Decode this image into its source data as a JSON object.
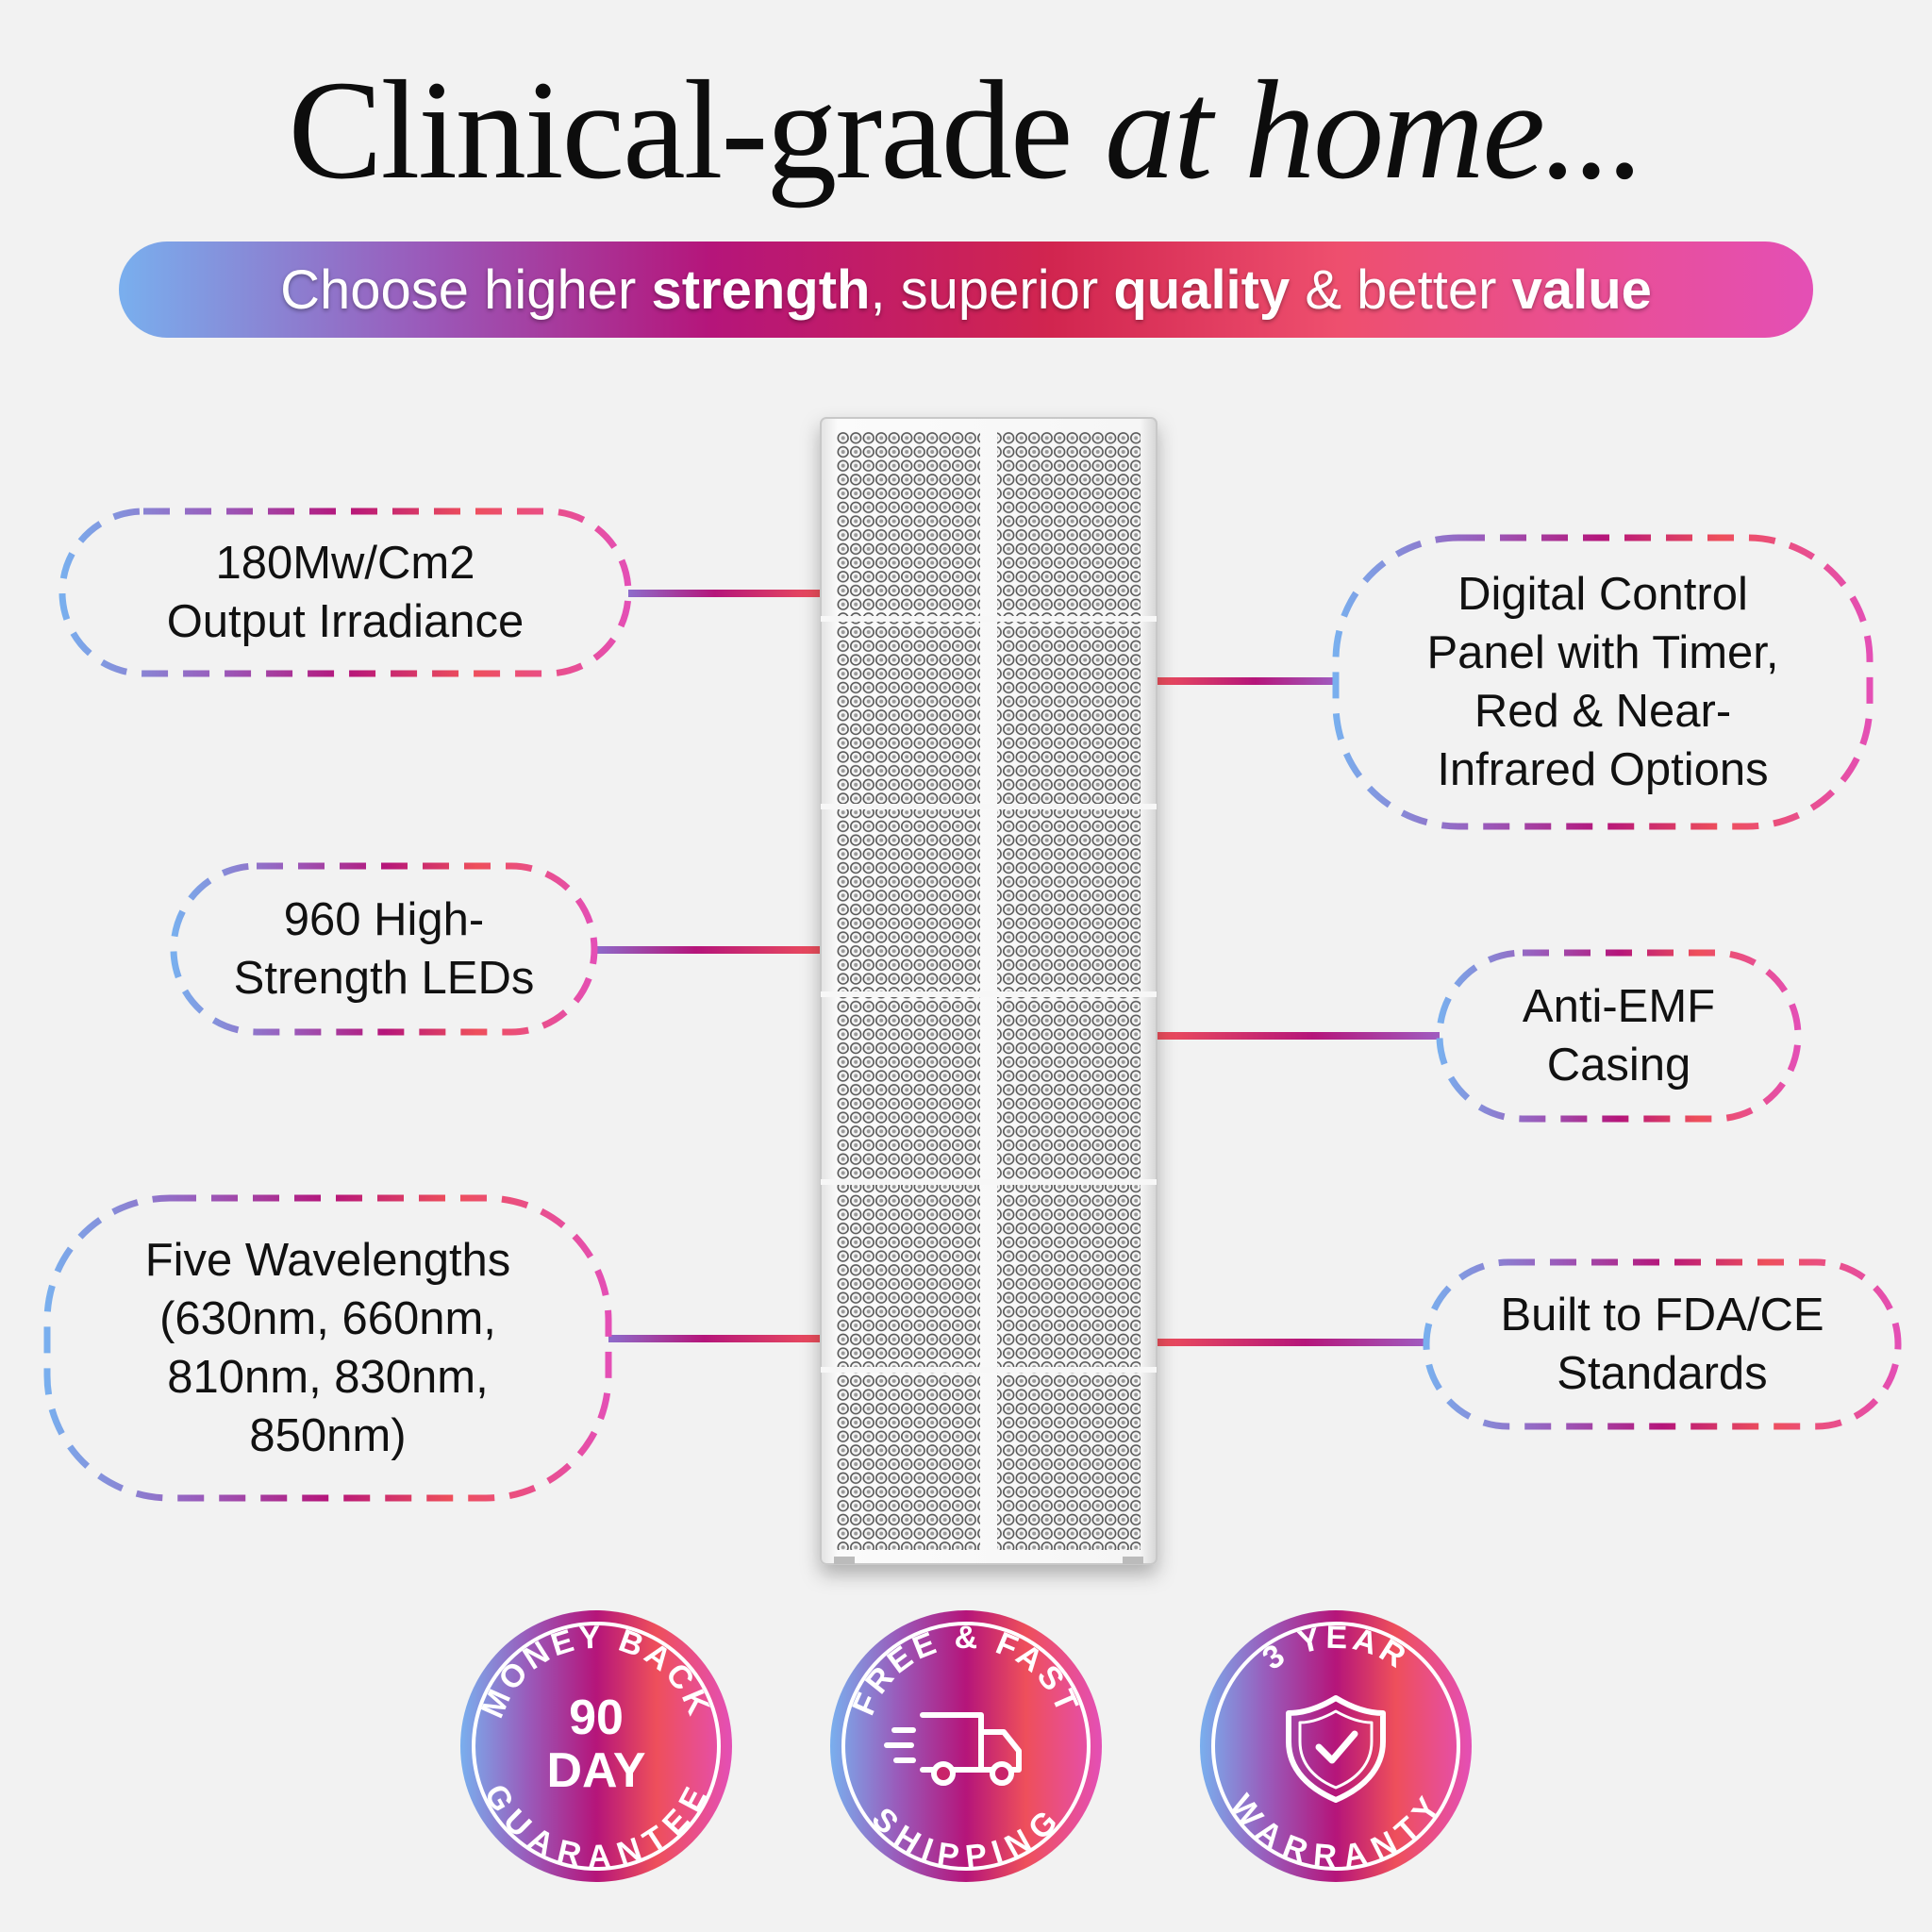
{
  "headline": {
    "part1": "Clinical-grade ",
    "part2": "at home..."
  },
  "banner": {
    "t1": "Choose higher ",
    "b1": "strength",
    "t2": ", superior ",
    "b2": "quality",
    "t3": " & better ",
    "b3": "value"
  },
  "features_left": [
    {
      "lines": [
        "180Mw/Cm2",
        "Output Irradiance"
      ]
    },
    {
      "lines": [
        "960 High-",
        "Strength LEDs"
      ]
    },
    {
      "lines": [
        "Five Wavelengths",
        "(630nm, 660nm,",
        "810nm, 830nm,",
        "850nm)"
      ]
    }
  ],
  "features_right": [
    {
      "lines": [
        "Digital Control",
        "Panel with Timer,",
        "Red & Near-",
        "Infrared Options"
      ]
    },
    {
      "lines": [
        "Anti-EMF",
        "Casing"
      ]
    },
    {
      "lines": [
        "Built to FDA/CE",
        "Standards"
      ]
    }
  ],
  "badges": [
    {
      "top": "MONEY BACK",
      "big1": "90",
      "big2": "DAY",
      "bottom": "GUARANTEE",
      "icon": "none"
    },
    {
      "top": "FREE & FAST",
      "bottom": "SHIPPING",
      "icon": "delivery-truck-icon"
    },
    {
      "top": "3 YEAR",
      "bottom": "WARRANTY",
      "icon": "shield-check-icon"
    }
  ],
  "colors": {
    "blue": "#79afee",
    "purple": "#9a5aba",
    "magenta": "#b5157a",
    "red": "#ee4f5b",
    "pink": "#e44fb5",
    "background": "#f2f2f2"
  }
}
